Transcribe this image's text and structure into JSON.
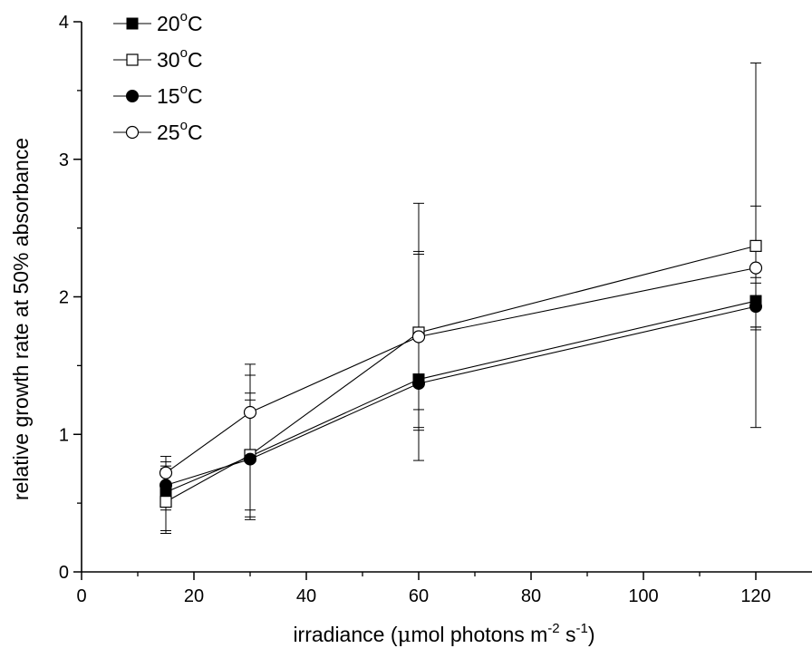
{
  "chart_data": {
    "type": "line",
    "xlabel": "irradiance (μmol photons m-2 s-1)",
    "xlabel_parts": {
      "prefix": "irradiance (",
      "mu": "μ",
      "middle": "mol photons m",
      "exp1": "-2",
      "space": " s",
      "exp2": "-1",
      "suffix": ")"
    },
    "ylabel": "relative growth rate at 50% absorbance",
    "xlim": [
      0,
      130
    ],
    "ylim": [
      0,
      4
    ],
    "x_ticks": [
      0,
      20,
      40,
      60,
      80,
      100,
      120
    ],
    "y_ticks": [
      0,
      1,
      2,
      3,
      4
    ],
    "grid": false,
    "legend_position": "top-left",
    "x": [
      15,
      30,
      60,
      120
    ],
    "series": [
      {
        "name": "20°C",
        "name_parts": {
          "num": "20",
          "deg": "o",
          "unit": "C"
        },
        "marker": "filled-square",
        "values": [
          0.58,
          0.84,
          1.4,
          1.97
        ],
        "err_low": [
          0.3,
          0.45,
          1.05,
          1.78
        ],
        "err_high": [
          0.8,
          1.3,
          2.33,
          2.14
        ]
      },
      {
        "name": "30°C",
        "name_parts": {
          "num": "30",
          "deg": "o",
          "unit": "C"
        },
        "marker": "open-square",
        "values": [
          0.51,
          0.85,
          1.74,
          2.37
        ],
        "err_low": [
          0.28,
          0.4,
          0.81,
          1.05
        ],
        "err_high": [
          0.75,
          1.43,
          2.68,
          3.7
        ]
      },
      {
        "name": "15°C",
        "name_parts": {
          "num": "15",
          "deg": "o",
          "unit": "C"
        },
        "marker": "filled-circle",
        "values": [
          0.63,
          0.82,
          1.37,
          1.93
        ],
        "err_low": [
          0.45,
          0.38,
          1.03,
          1.76
        ],
        "err_high": [
          0.77,
          1.25,
          1.72,
          2.1
        ]
      },
      {
        "name": "25°C",
        "name_parts": {
          "num": "25",
          "deg": "o",
          "unit": "C"
        },
        "marker": "open-circle",
        "values": [
          0.72,
          1.16,
          1.71,
          2.21
        ],
        "err_low": [
          0.58,
          0.8,
          1.18,
          1.78
        ],
        "err_high": [
          0.84,
          1.51,
          2.31,
          2.66
        ]
      }
    ]
  }
}
